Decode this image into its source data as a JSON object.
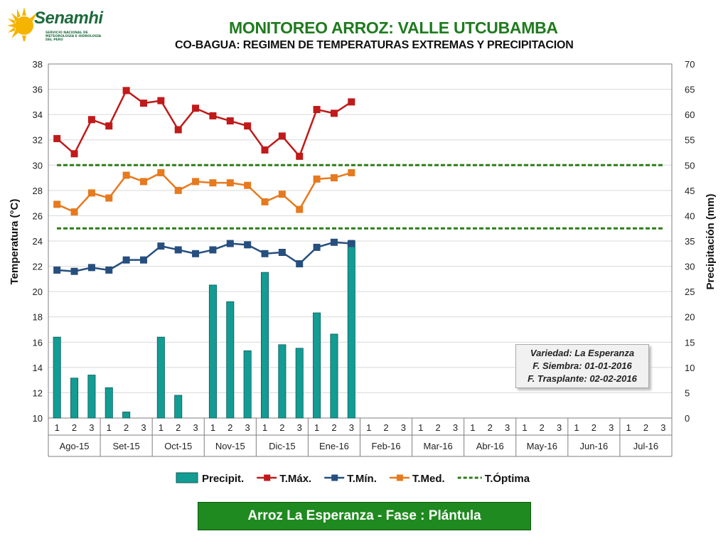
{
  "logo": {
    "name": "Senamhi",
    "subtitle": "SERVICIO NACIONAL DE METEOROLOGÍA E HIDROLOGÍA DEL PERÚ"
  },
  "title": "MONITOREO ARROZ: VALLE UTCUBAMBA",
  "subtitle": "CO-BAGUA: REGIMEN DE TEMPERATURAS EXTREMAS Y PRECIPITACION",
  "info": {
    "variety": "Variedad: La Esperanza",
    "sowing": "F. Siembra: 01-01-2016",
    "transplant": "F. Trasplante: 02-02-2016"
  },
  "phase": "Arroz La Esperanza - Fase : Plántula",
  "colors": {
    "precip": "#139c93",
    "tmax": "#c01a1a",
    "tmin": "#264f7f",
    "tmed": "#e67a1e",
    "topt": "#2e7d1a"
  },
  "chart_data": {
    "type": "bar+line",
    "months": [
      "Ago-15",
      "Set-15",
      "Oct-15",
      "Nov-15",
      "Dic-15",
      "Ene-16",
      "Feb-16",
      "Mar-16",
      "Abr-16",
      "May-16",
      "Jun-16",
      "Jul-16"
    ],
    "dekads": [
      "1",
      "2",
      "3"
    ],
    "ylabel_left": "Temperatura (°C)",
    "ylabel_right": "Precipitación  (mm)",
    "ylim_left": [
      10,
      38
    ],
    "ylim_right": [
      0,
      70
    ],
    "yticks_left": [
      "10",
      "12",
      "14",
      "16",
      "18",
      "20",
      "22",
      "24",
      "26",
      "28",
      "30",
      "32",
      "34",
      "36",
      "38"
    ],
    "yticks_right": [
      "0",
      "5",
      "10",
      "15",
      "20",
      "25",
      "30",
      "35",
      "40",
      "45",
      "50",
      "55",
      "60",
      "65",
      "70"
    ],
    "optimum_range": [
      25,
      30
    ],
    "series": [
      {
        "name": "Precipit.",
        "kind": "bar",
        "axis": "right",
        "values": [
          16,
          7.9,
          8.5,
          6,
          1.2,
          0,
          16,
          4.5,
          0,
          26.3,
          23,
          13.3,
          28.8,
          14.5,
          13.8,
          20.8,
          16.6,
          35,
          null,
          null,
          null,
          null,
          null,
          null,
          null,
          null,
          null,
          null,
          null,
          null,
          null,
          null,
          null,
          null,
          null,
          null
        ]
      },
      {
        "name": "T.Máx.",
        "kind": "line",
        "axis": "left",
        "values": [
          32.1,
          30.9,
          33.6,
          33.1,
          35.9,
          34.9,
          35.1,
          32.8,
          34.5,
          33.9,
          33.5,
          33.1,
          31.2,
          32.3,
          30.7,
          34.4,
          34.1,
          35.0,
          null,
          null,
          null,
          null,
          null,
          null,
          null,
          null,
          null,
          null,
          null,
          null,
          null,
          null,
          null,
          null,
          null,
          null
        ]
      },
      {
        "name": "T.Mín.",
        "kind": "line",
        "axis": "left",
        "values": [
          21.7,
          21.6,
          21.9,
          21.7,
          22.5,
          22.5,
          23.6,
          23.3,
          23.0,
          23.3,
          23.8,
          23.7,
          23.0,
          23.1,
          22.2,
          23.5,
          23.9,
          23.8,
          null,
          null,
          null,
          null,
          null,
          null,
          null,
          null,
          null,
          null,
          null,
          null,
          null,
          null,
          null,
          null,
          null,
          null
        ]
      },
      {
        "name": "T.Med.",
        "kind": "line",
        "axis": "left",
        "values": [
          26.9,
          26.3,
          27.8,
          27.4,
          29.2,
          28.7,
          29.4,
          28.0,
          28.7,
          28.6,
          28.6,
          28.4,
          27.1,
          27.7,
          26.5,
          28.9,
          29.0,
          29.4,
          null,
          null,
          null,
          null,
          null,
          null,
          null,
          null,
          null,
          null,
          null,
          null,
          null,
          null,
          null,
          null,
          null,
          null
        ]
      },
      {
        "name": "T.Óptima",
        "kind": "dashed",
        "axis": "left",
        "values": [
          25,
          30
        ]
      }
    ]
  }
}
